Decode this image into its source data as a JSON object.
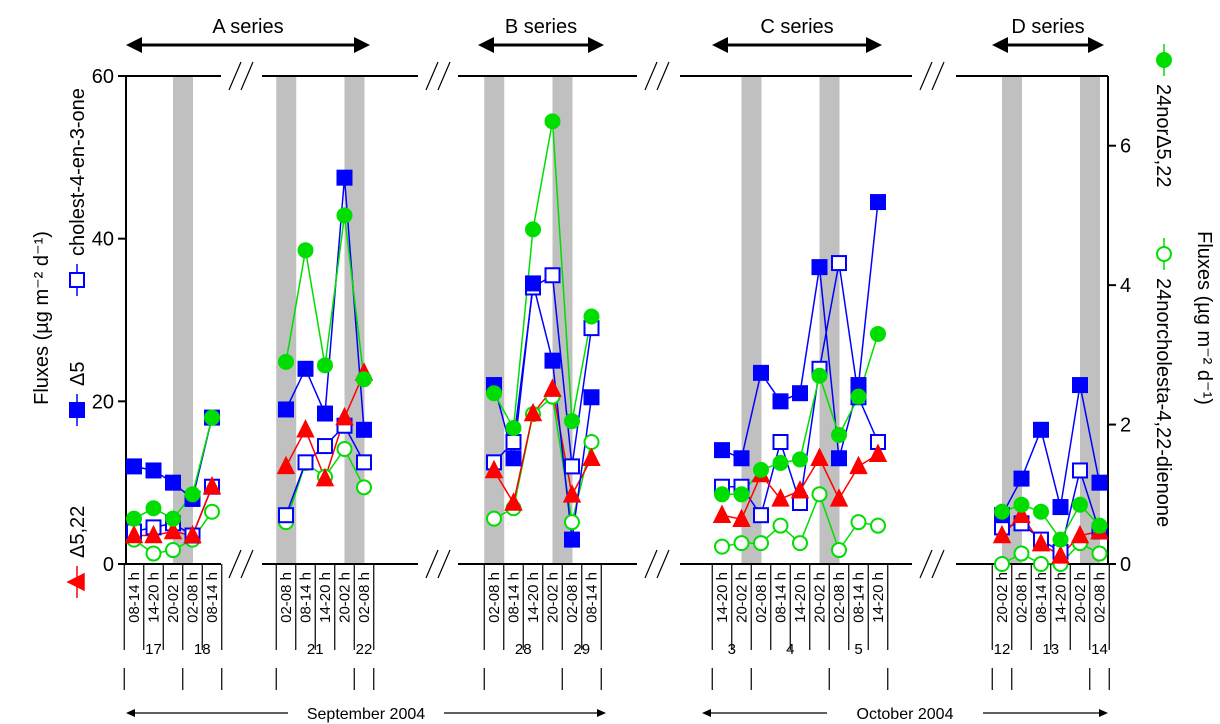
{
  "chart_data": {
    "type": "line",
    "series_headers": [
      "A series",
      "B series",
      "C series",
      "D series"
    ],
    "ylabel_left": "Fluxes  (µg m⁻² d⁻¹)",
    "ylabel_right": "Fluxes  (µg m⁻² d⁻¹)",
    "ylim_left": [
      0,
      60
    ],
    "ylim_right": [
      0,
      7
    ],
    "yticks_left": [
      "0",
      "20",
      "40",
      "60"
    ],
    "yticks_right": [
      "0",
      "2",
      "4",
      "6"
    ],
    "months": [
      "September 2004",
      "October 2004"
    ],
    "groups": [
      {
        "x": [
          "08-14 h",
          "14-20 h",
          "20-02 h",
          "02-08 h",
          "08-14 h"
        ],
        "days": [
          {
            "label": "17",
            "from": 0,
            "to": 2
          },
          {
            "label": "18",
            "from": 3,
            "to": 4
          }
        ],
        "night_bands": [
          [
            2,
            3
          ]
        ]
      },
      {
        "x": [
          "02-08 h",
          "08-14 h",
          "14-20 h",
          "20-02 h",
          "02-08 h"
        ],
        "days": [
          {
            "label": "21",
            "from": 0,
            "to": 3
          },
          {
            "label": "22",
            "from": 4,
            "to": 4
          }
        ],
        "night_bands": [
          [
            0,
            0
          ],
          [
            3,
            4
          ]
        ]
      },
      {
        "x": [
          "02-08 h",
          "08-14 h",
          "14-20 h",
          "20-02 h",
          "02-08 h",
          "08-14 h"
        ],
        "days": [
          {
            "label": "28",
            "from": 0,
            "to": 3
          },
          {
            "label": "29",
            "from": 4,
            "to": 5
          }
        ],
        "night_bands": [
          [
            0,
            0
          ],
          [
            3,
            4
          ]
        ]
      },
      {
        "x": [
          "14-20 h",
          "20-02 h",
          "02-08 h",
          "08-14 h",
          "14-20 h",
          "20-02 h",
          "02-08 h",
          "08-14 h",
          "14-20 h"
        ],
        "days": [
          {
            "label": "3",
            "from": 0,
            "to": 1
          },
          {
            "label": "4",
            "from": 2,
            "to": 5
          },
          {
            "label": "5",
            "from": 6,
            "to": 8
          }
        ],
        "night_bands": [
          [
            1,
            2
          ],
          [
            5,
            6
          ]
        ]
      },
      {
        "x": [
          "20-02 h",
          "02-08 h",
          "08-14 h",
          "14-20 h",
          "20-02 h",
          "02-08 h"
        ],
        "days": [
          {
            "label": "12",
            "from": 0,
            "to": 0
          },
          {
            "label": "13",
            "from": 1,
            "to": 4
          },
          {
            "label": "14",
            "from": 5,
            "to": 5
          }
        ],
        "night_bands": [
          [
            0,
            1
          ],
          [
            4,
            5
          ]
        ]
      }
    ],
    "series": [
      {
        "name": "Δ5,22",
        "axis": "left",
        "color": "#ff0000",
        "marker": "triangle",
        "filled": true,
        "values": [
          [
            3.5,
            3.5,
            4,
            3.5,
            9.5
          ],
          [
            12,
            16.5,
            10.5,
            18,
            23.5
          ],
          [
            11.5,
            7.5,
            18.5,
            21.5,
            8.5,
            13
          ],
          [
            6,
            5.5,
            11,
            8,
            9,
            13,
            8,
            12,
            13.5
          ],
          [
            3.5,
            6,
            2.5,
            1,
            3.5,
            4
          ]
        ]
      },
      {
        "name": "Δ5",
        "axis": "left",
        "color": "#0000ff",
        "marker": "square",
        "filled": true,
        "values": [
          [
            12,
            11.5,
            10,
            8,
            18
          ],
          [
            19,
            24,
            18.5,
            47.5,
            16.5
          ],
          [
            22,
            13,
            34.5,
            25,
            3,
            20.5
          ],
          [
            14,
            13,
            23.5,
            20,
            21,
            36.5,
            13,
            22,
            44.5
          ],
          [
            6,
            10.5,
            16.5,
            7,
            22,
            10
          ]
        ]
      },
      {
        "name": "cholest-4-en-3-one",
        "axis": "left",
        "color": "#0000ff",
        "marker": "square",
        "filled": false,
        "values": [
          [
            4,
            4.5,
            5,
            3.5,
            9.5
          ],
          [
            6,
            12.5,
            14.5,
            17,
            12.5
          ],
          [
            12.5,
            15,
            34,
            35.5,
            12,
            29
          ],
          [
            9.5,
            9.5,
            6,
            15,
            7.5,
            24,
            37,
            20.5,
            15
          ],
          [
            4.5,
            5,
            3,
            1.5,
            11.5,
            4
          ]
        ]
      },
      {
        "name": "24norΔ5,22",
        "axis": "right",
        "color": "#00dd00",
        "marker": "circle",
        "filled": true,
        "values": [
          [
            0.65,
            0.8,
            0.65,
            1.0,
            2.1
          ],
          [
            2.9,
            4.5,
            2.85,
            5.0,
            2.65
          ],
          [
            2.45,
            1.95,
            4.8,
            6.35,
            2.05,
            3.55
          ],
          [
            1.0,
            1.0,
            1.35,
            1.45,
            1.5,
            2.7,
            1.85,
            2.4,
            3.3
          ],
          [
            0.75,
            0.85,
            0.75,
            0.35,
            0.85,
            0.55
          ]
        ]
      },
      {
        "name": "24norcholesta-4,22-dienone",
        "axis": "right",
        "color": "#00dd00",
        "marker": "circle",
        "filled": false,
        "values": [
          [
            0.35,
            0.15,
            0.2,
            0.35,
            0.75
          ],
          [
            0.6,
            1.45,
            1.25,
            1.65,
            1.1
          ],
          [
            0.65,
            0.8,
            2.15,
            2.4,
            0.6,
            1.75
          ],
          [
            0.25,
            0.3,
            0.3,
            0.55,
            0.3,
            1.0,
            0.2,
            0.6,
            0.55
          ],
          [
            0.0,
            0.15,
            0.0,
            0.0,
            0.3,
            0.15
          ]
        ]
      }
    ]
  }
}
